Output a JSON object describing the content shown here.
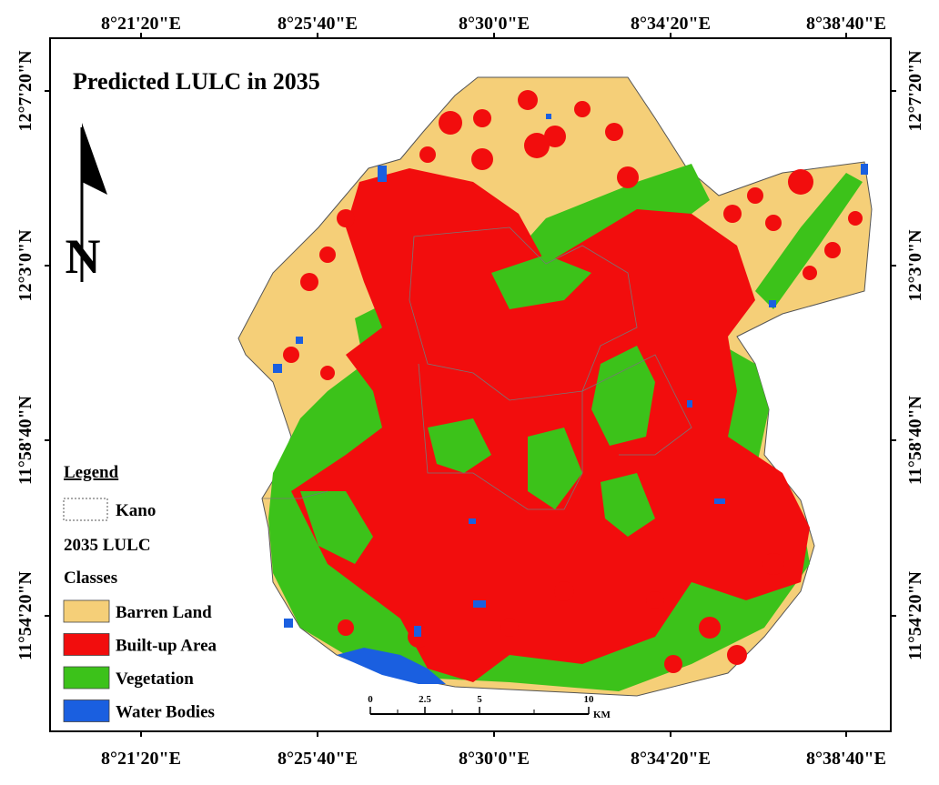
{
  "title": "Predicted LULC in 2035",
  "top_labels": [
    "8°21'20\"E",
    "8°25'40\"E",
    "8°30'0\"E",
    "8°34'20\"E",
    "8°38'40\"E"
  ],
  "bottom_labels": [
    "8°21'20\"E",
    "8°25'40\"E",
    "8°30'0\"E",
    "8°34'20\"E",
    "8°38'40\"E"
  ],
  "left_labels": [
    "12°7'20\"N",
    "12°3'0\"N",
    "11°58'40\"N",
    "11°54'20\"N"
  ],
  "right_labels": [
    "12°7'20\"N",
    "12°3'0\"N",
    "11°58'40\"N",
    "11°54'20\"N"
  ],
  "north_arrow": "N",
  "legend": {
    "title": "Legend",
    "boundary": "Kano",
    "subtitle": "2035 LULC",
    "classes_title": "Classes",
    "classes": [
      {
        "name": "Barren Land",
        "color": "#f5cf78"
      },
      {
        "name": "Built-up Area",
        "color": "#f20d0d"
      },
      {
        "name": "Vegetation",
        "color": "#3cc21a"
      },
      {
        "name": "Water Bodies",
        "color": "#1a5fe0"
      }
    ]
  },
  "scale_bar": {
    "ticks": [
      0,
      2.5,
      5,
      10
    ],
    "unit": "KM"
  }
}
